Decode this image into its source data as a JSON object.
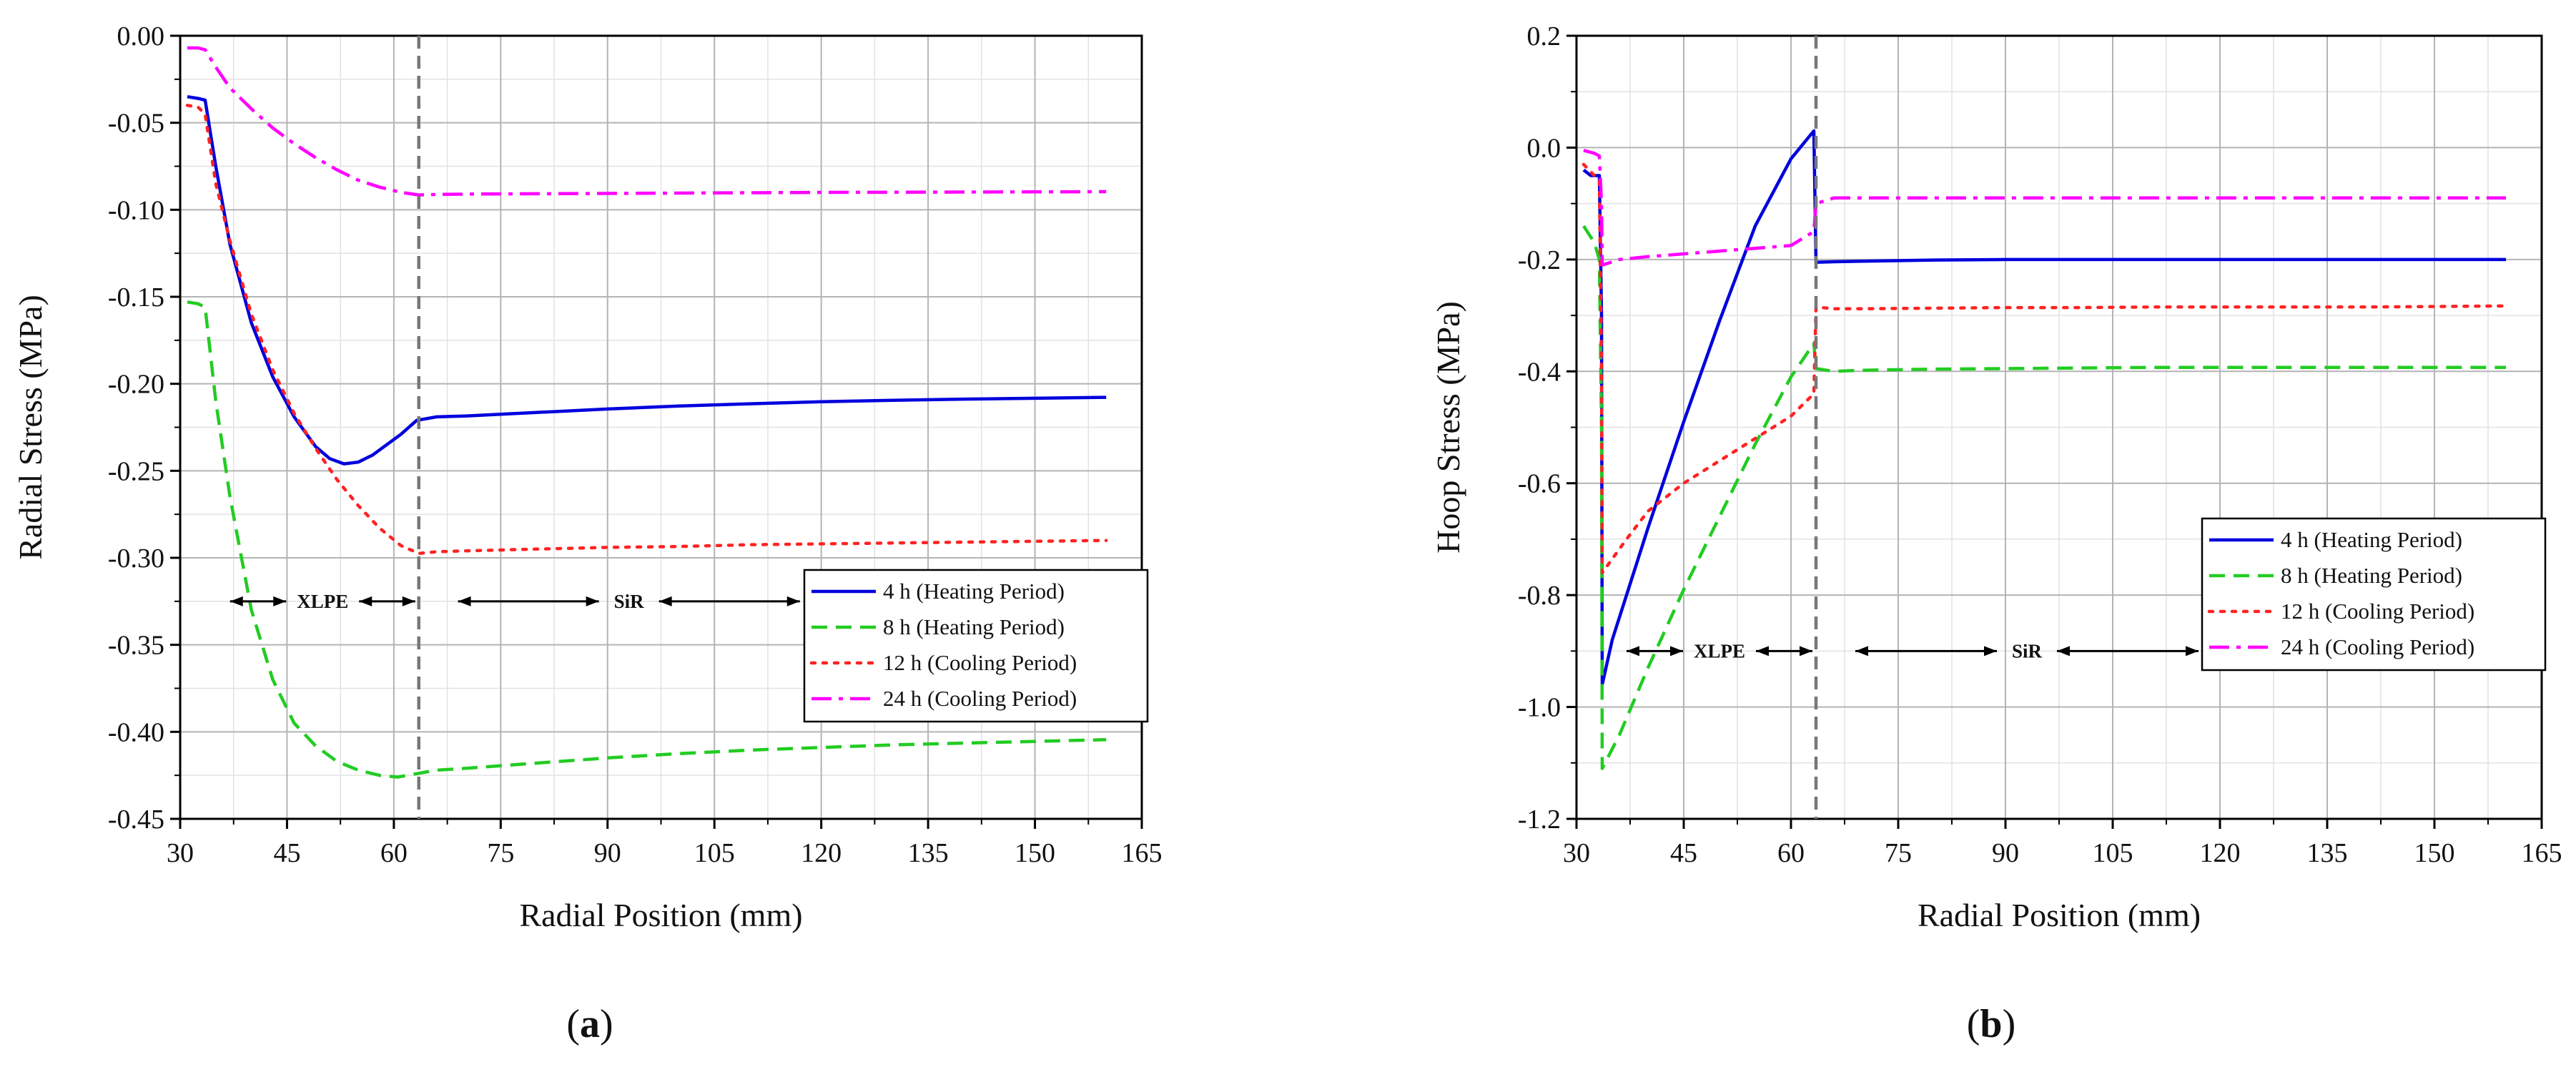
{
  "figure": {
    "panel_labels": [
      "(a)",
      "(b)"
    ]
  },
  "chart_data": [
    {
      "type": "line",
      "panel": "(a)",
      "xlabel": "Radial Position (mm)",
      "ylabel": "Radial Stress (MPa)",
      "xlim": [
        30,
        165
      ],
      "ylim": [
        -0.45,
        0.0
      ],
      "xticks": [
        30,
        45,
        60,
        75,
        90,
        105,
        120,
        135,
        150,
        165
      ],
      "xtick_labels": [
        "30",
        "45",
        "60",
        "75",
        "90",
        "105",
        "120",
        "135",
        "150",
        "165"
      ],
      "yticks": [
        0.0,
        -0.05,
        -0.1,
        -0.15,
        -0.2,
        -0.25,
        -0.3,
        -0.35,
        -0.4,
        -0.45
      ],
      "ytick_labels": [
        "0.00",
        "-0.05",
        "-0.10",
        "-0.15",
        "-0.20",
        "-0.25",
        "-0.30",
        "-0.35",
        "-0.40",
        "-0.45"
      ],
      "grid": true,
      "legend_position": "center-right",
      "interface_x": 63.5,
      "regions": [
        {
          "label": "XLPE",
          "from": 37,
          "to": 63,
          "y": -0.325
        },
        {
          "label": "SiR",
          "from": 69,
          "to": 117,
          "y": -0.325
        }
      ],
      "series": [
        {
          "name": "4 h (Heating Period)",
          "color": "#0000dd",
          "dash": "solid",
          "x": [
            31,
            32.5,
            33.5,
            35,
            37,
            40,
            43,
            46,
            49,
            51,
            53,
            55,
            57,
            59,
            61,
            63.2,
            66,
            70,
            75,
            80,
            90,
            100,
            110,
            120,
            130,
            140,
            150,
            160
          ],
          "y": [
            -0.035,
            -0.036,
            -0.037,
            -0.075,
            -0.12,
            -0.165,
            -0.196,
            -0.219,
            -0.236,
            -0.243,
            -0.246,
            -0.245,
            -0.241,
            -0.235,
            -0.229,
            -0.221,
            -0.219,
            -0.2185,
            -0.2175,
            -0.2165,
            -0.2145,
            -0.2128,
            -0.2115,
            -0.2103,
            -0.2095,
            -0.2088,
            -0.2083,
            -0.2078
          ]
        },
        {
          "name": "8 h (Heating Period)",
          "color": "#22cc22",
          "dash": "dashed",
          "x": [
            31,
            32.5,
            33.5,
            35,
            37,
            40,
            43,
            46,
            49,
            52,
            55,
            58,
            60.5,
            63.3,
            66,
            70,
            80,
            90,
            100,
            110,
            120,
            130,
            140,
            150,
            160
          ],
          "y": [
            -0.153,
            -0.154,
            -0.156,
            -0.21,
            -0.265,
            -0.33,
            -0.37,
            -0.395,
            -0.408,
            -0.417,
            -0.422,
            -0.425,
            -0.426,
            -0.424,
            -0.422,
            -0.421,
            -0.418,
            -0.415,
            -0.4125,
            -0.4105,
            -0.409,
            -0.4075,
            -0.4065,
            -0.4055,
            -0.4045
          ]
        },
        {
          "name": "12 h (Cooling Period)",
          "color": "#ff2222",
          "dash": "dotted",
          "x": [
            31,
            32.5,
            33.5,
            35,
            37,
            40,
            43,
            46,
            49,
            52,
            55,
            58,
            61,
            63.5,
            66,
            70,
            80,
            90,
            100,
            110,
            120,
            130,
            140,
            150,
            160
          ],
          "y": [
            -0.04,
            -0.041,
            -0.045,
            -0.085,
            -0.118,
            -0.16,
            -0.192,
            -0.217,
            -0.237,
            -0.255,
            -0.27,
            -0.283,
            -0.293,
            -0.2975,
            -0.2965,
            -0.296,
            -0.295,
            -0.294,
            -0.2935,
            -0.2925,
            -0.292,
            -0.2915,
            -0.291,
            -0.2905,
            -0.29
          ]
        },
        {
          "name": "24 h (Cooling Period)",
          "color": "#ff00ff",
          "dash": "dashdot",
          "x": [
            31,
            32.5,
            33.5,
            35,
            37,
            40,
            43,
            46,
            49,
            52,
            55,
            58,
            61,
            63.5,
            66,
            70,
            80,
            90,
            100,
            110,
            120,
            130,
            140,
            150,
            160
          ],
          "y": [
            -0.007,
            -0.007,
            -0.008,
            -0.018,
            -0.03,
            -0.042,
            -0.053,
            -0.062,
            -0.07,
            -0.077,
            -0.083,
            -0.087,
            -0.09,
            -0.0915,
            -0.0912,
            -0.091,
            -0.0908,
            -0.0906,
            -0.0904,
            -0.0902,
            -0.09,
            -0.0899,
            -0.0898,
            -0.0897,
            -0.0896
          ]
        }
      ]
    },
    {
      "type": "line",
      "panel": "(b)",
      "xlabel": "Radial Position (mm)",
      "ylabel": "Hoop Stress (MPa)",
      "xlim": [
        30,
        165
      ],
      "ylim": [
        -1.2,
        0.2
      ],
      "xticks": [
        30,
        45,
        60,
        75,
        90,
        105,
        120,
        135,
        150,
        165
      ],
      "xtick_labels": [
        "30",
        "45",
        "60",
        "75",
        "90",
        "105",
        "120",
        "135",
        "150",
        "165"
      ],
      "yticks": [
        0.2,
        0.0,
        -0.2,
        -0.4,
        -0.6,
        -0.8,
        -1.0,
        -1.2
      ],
      "ytick_labels": [
        "0.2",
        "0.0",
        "-0.2",
        "-0.4",
        "-0.6",
        "-0.8",
        "-1.0",
        "-1.2"
      ],
      "grid": true,
      "legend_position": "center-right",
      "interface_x": 63.5,
      "regions": [
        {
          "label": "XLPE",
          "from": 37,
          "to": 63,
          "y": -0.9
        },
        {
          "label": "SiR",
          "from": 69,
          "to": 117,
          "y": -0.9
        }
      ],
      "series": [
        {
          "name": "4 h (Heating Period)",
          "color": "#0000dd",
          "dash": "solid",
          "x": [
            31,
            32,
            33.2,
            33.5,
            33.6,
            35,
            40,
            45,
            50,
            55,
            60,
            63.2,
            63.5,
            66,
            70,
            80,
            90,
            100,
            110,
            120,
            130,
            140,
            150,
            160
          ],
          "y": [
            -0.04,
            -0.05,
            -0.05,
            -0.3,
            -0.96,
            -0.88,
            -0.68,
            -0.49,
            -0.31,
            -0.14,
            -0.02,
            0.03,
            -0.205,
            -0.204,
            -0.203,
            -0.201,
            -0.2,
            -0.2,
            -0.2,
            -0.2,
            -0.2,
            -0.2,
            -0.2,
            -0.2
          ]
        },
        {
          "name": "8 h (Heating Period)",
          "color": "#22cc22",
          "dash": "dashed",
          "x": [
            31,
            32.5,
            33.2,
            33.5,
            33.6,
            36,
            40,
            45,
            50,
            55,
            60,
            63.2,
            63.5,
            66,
            70,
            80,
            90,
            100,
            110,
            120,
            130,
            140,
            150,
            160
          ],
          "y": [
            -0.14,
            -0.17,
            -0.2,
            -0.5,
            -1.11,
            -1.05,
            -0.93,
            -0.79,
            -0.66,
            -0.53,
            -0.41,
            -0.35,
            -0.395,
            -0.4,
            -0.398,
            -0.396,
            -0.395,
            -0.394,
            -0.393,
            -0.393,
            -0.393,
            -0.393,
            -0.393,
            -0.393
          ]
        },
        {
          "name": "12 h (Cooling Period)",
          "color": "#ff2222",
          "dash": "dotted",
          "x": [
            31,
            32.5,
            33.2,
            33.5,
            33.6,
            37,
            40,
            45,
            50,
            55,
            60,
            63.2,
            63.5,
            66,
            70,
            80,
            90,
            100,
            110,
            120,
            130,
            140,
            150,
            160
          ],
          "y": [
            -0.03,
            -0.05,
            -0.06,
            -0.4,
            -0.76,
            -0.7,
            -0.65,
            -0.6,
            -0.56,
            -0.52,
            -0.48,
            -0.44,
            -0.285,
            -0.288,
            -0.288,
            -0.287,
            -0.286,
            -0.286,
            -0.285,
            -0.285,
            -0.285,
            -0.285,
            -0.284,
            -0.283
          ]
        },
        {
          "name": "24 h (Cooling Period)",
          "color": "#ff00ff",
          "dash": "dashdot",
          "x": [
            31,
            32.5,
            33.2,
            33.5,
            33.6,
            36,
            40,
            45,
            50,
            55,
            60,
            63.2,
            63.5,
            66,
            70,
            80,
            90,
            100,
            110,
            120,
            130,
            140,
            150,
            160
          ],
          "y": [
            -0.005,
            -0.01,
            -0.015,
            -0.1,
            -0.21,
            -0.2,
            -0.195,
            -0.19,
            -0.185,
            -0.18,
            -0.175,
            -0.15,
            -0.1,
            -0.09,
            -0.09,
            -0.09,
            -0.09,
            -0.09,
            -0.09,
            -0.09,
            -0.09,
            -0.09,
            -0.09,
            -0.09
          ]
        }
      ]
    }
  ]
}
